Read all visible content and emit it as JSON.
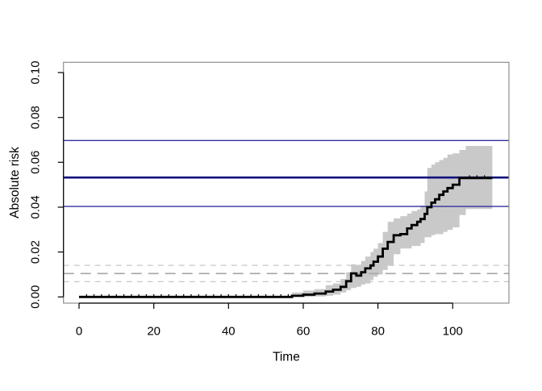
{
  "page": {
    "background": "#ffffff"
  },
  "chart_data": {
    "type": "line",
    "title": "",
    "xlabel": "Time",
    "ylabel": "Absolute risk",
    "grid": false,
    "legend": "none",
    "xlim": [
      -4.17,
      115.05
    ],
    "ylim": [
      -0.00277,
      0.10456
    ],
    "x_ticks": {
      "values": [
        0,
        20,
        40,
        60,
        80,
        100
      ],
      "labels": [
        "0",
        "20",
        "40",
        "60",
        "80",
        "100"
      ]
    },
    "y_ticks": {
      "values": [
        0,
        0.02,
        0.04,
        0.06,
        0.08,
        0.1
      ],
      "labels": [
        "0.00",
        "0.02",
        "0.04",
        "0.06",
        "0.08",
        "0.10"
      ]
    },
    "frame_color": "#8f8f8f",
    "axis_color": "#000000",
    "series": [
      {
        "name": "absolute-risk-step-curve",
        "type": "step",
        "color": "#000000",
        "line_width": 2.8,
        "x": [
          0,
          57,
          60,
          63,
          66,
          68,
          70,
          71.5,
          72.8,
          74.2,
          75.5,
          76.6,
          78,
          78.8,
          80,
          81.3,
          82.6,
          84.2,
          86,
          87.8,
          89,
          90.5,
          91.4,
          92.5,
          93.2,
          94.3,
          95.3,
          96.4,
          97.5,
          98.6,
          100,
          101.8,
          103.5,
          110.6
        ],
        "y": [
          0,
          0.0005,
          0.001,
          0.0015,
          0.0024,
          0.0032,
          0.0045,
          0.007,
          0.0105,
          0.0095,
          0.011,
          0.0127,
          0.014,
          0.0157,
          0.018,
          0.0215,
          0.0245,
          0.0275,
          0.028,
          0.0305,
          0.032,
          0.0335,
          0.0347,
          0.037,
          0.04,
          0.042,
          0.0435,
          0.0455,
          0.047,
          0.0485,
          0.05,
          0.053,
          0.053,
          0.053
        ]
      }
    ],
    "confidence_band": {
      "name": "pointwise-confidence-band",
      "color": "#c9c9c9",
      "x": [
        0,
        57,
        60,
        63,
        66,
        68,
        70,
        71.5,
        72.8,
        74.2,
        75.5,
        76.6,
        78,
        78.8,
        80,
        81.3,
        82.6,
        84.2,
        86,
        87.8,
        89,
        90.5,
        91.4,
        92.5,
        93.2,
        94.3,
        95.3,
        96.4,
        97.5,
        98.6,
        100,
        101.8,
        103.5,
        110.6
      ],
      "lower": [
        0,
        0,
        0,
        0.0002,
        0.0005,
        0.001,
        0.002,
        0.003,
        0.004,
        0.0045,
        0.0055,
        0.006,
        0.0075,
        0.009,
        0.01,
        0.012,
        0.014,
        0.019,
        0.0216,
        0.0216,
        0.0227,
        0.0227,
        0.024,
        0.0266,
        0.0266,
        0.0275,
        0.028,
        0.028,
        0.029,
        0.0299,
        0.031,
        0.0365,
        0.0392,
        0.0392
      ],
      "upper": [
        0,
        0.002,
        0.0028,
        0.0035,
        0.0052,
        0.006,
        0.008,
        0.011,
        0.0145,
        0.014,
        0.016,
        0.018,
        0.02,
        0.0215,
        0.024,
        0.029,
        0.0335,
        0.035,
        0.036,
        0.0371,
        0.0383,
        0.039,
        0.0407,
        0.047,
        0.0575,
        0.059,
        0.06,
        0.061,
        0.062,
        0.0635,
        0.064,
        0.0655,
        0.0673,
        0.0673
      ]
    },
    "censor_ticks": {
      "t": [
        2,
        4,
        6,
        8,
        10,
        12,
        14,
        16,
        18,
        20,
        22,
        24,
        26,
        28,
        30,
        32,
        34,
        36,
        38,
        40,
        42,
        44,
        46,
        48,
        50,
        52,
        54,
        56,
        104.5,
        106.5,
        108.5
      ],
      "risk": [
        0,
        0,
        0,
        0,
        0,
        0,
        0,
        0,
        0,
        0,
        0,
        0,
        0,
        0,
        0,
        0,
        0,
        0,
        0,
        0,
        0,
        0,
        0,
        0,
        0,
        0,
        0,
        0,
        0.053,
        0.053,
        0.053
      ]
    },
    "reference_lines": {
      "solid": [
        {
          "label": "final-risk-lower-ci-line",
          "value": 0.0403,
          "color": "#31319f",
          "width": 1.4
        },
        {
          "label": "final-risk-estimate-line",
          "value": 0.0532,
          "color": "#12127e",
          "width": 2.6
        },
        {
          "label": "final-risk-upper-ci-line",
          "value": 0.0697,
          "color": "#31319f",
          "width": 1.4
        }
      ],
      "dashed": [
        {
          "label": "comparison-upper-ci-line",
          "value": 0.0141,
          "color": "#c7c7c7",
          "width": 1.3,
          "dash": "7,6"
        },
        {
          "label": "comparison-estimate-line",
          "value": 0.0104,
          "color": "#a6a6a6",
          "width": 1.6,
          "dash": "13,8"
        },
        {
          "label": "comparison-lower-ci-line",
          "value": 0.0068,
          "color": "#c7c7c7",
          "width": 1.3,
          "dash": "7,6"
        }
      ]
    }
  }
}
